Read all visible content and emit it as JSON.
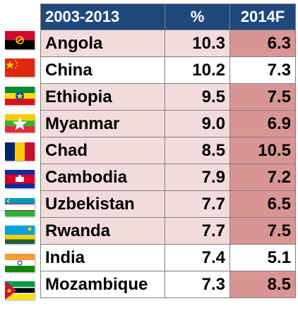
{
  "chart_data": {
    "type": "table",
    "columns": [
      "2003-2013",
      "%",
      "2014F"
    ],
    "rows": [
      {
        "country": "Angola",
        "flag": "angola-flag-icon",
        "pct": "10.3",
        "forecast": "6.3"
      },
      {
        "country": "China",
        "flag": "china-flag-icon",
        "pct": "10.2",
        "forecast": "7.3"
      },
      {
        "country": "Ethiopia",
        "flag": "ethiopia-flag-icon",
        "pct": "9.5",
        "forecast": "7.5"
      },
      {
        "country": "Myanmar",
        "flag": "myanmar-flag-icon",
        "pct": "9.0",
        "forecast": "6.9"
      },
      {
        "country": "Chad",
        "flag": "chad-flag-icon",
        "pct": "8.5",
        "forecast": "10.5"
      },
      {
        "country": "Cambodia",
        "flag": "cambodia-flag-icon",
        "pct": "7.9",
        "forecast": "7.2"
      },
      {
        "country": "Uzbekistan",
        "flag": "uzbekistan-flag-icon",
        "pct": "7.7",
        "forecast": "6.5"
      },
      {
        "country": "Rwanda",
        "flag": "rwanda-flag-icon",
        "pct": "7.7",
        "forecast": "7.5"
      },
      {
        "country": "India",
        "flag": "india-flag-icon",
        "pct": "7.4",
        "forecast": "5.1"
      },
      {
        "country": "Mozambique",
        "flag": "mozambique-flag-icon",
        "pct": "7.3",
        "forecast": "8.5"
      }
    ]
  },
  "colors": {
    "header_bg": "#1f497d",
    "header_text": "#ffffff",
    "row_tint": "#f2dcdb",
    "forecast_tint": "#d99594"
  }
}
